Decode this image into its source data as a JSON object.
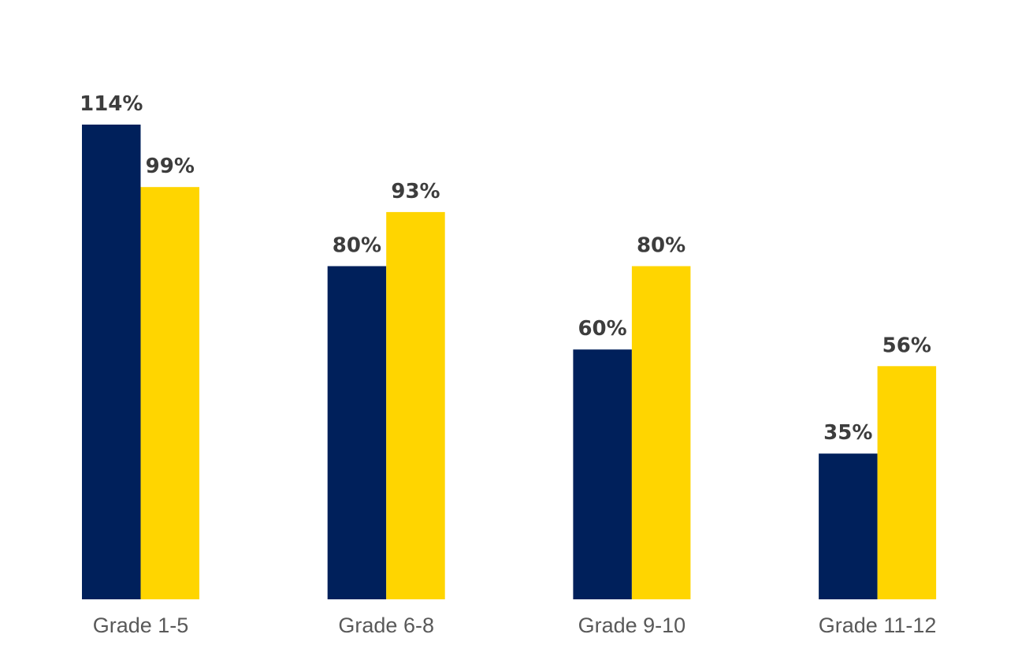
{
  "chart_data": {
    "type": "bar",
    "title": "",
    "xlabel": "",
    "ylabel": "",
    "categories": [
      "Grade 1-5",
      "Grade 6-8",
      "Grade 9-10",
      "Grade 11-12"
    ],
    "series": [
      {
        "color": "#00205B",
        "values": [
          114,
          80,
          60,
          35
        ],
        "labels": [
          "114%",
          "80%",
          "60%",
          "35%"
        ]
      },
      {
        "color": "#FFD500",
        "values": [
          99,
          93,
          80,
          56
        ],
        "labels": [
          "99%",
          "93%",
          "80%",
          "56%"
        ]
      }
    ],
    "ylim": [
      0,
      114
    ],
    "grid": false,
    "legend": "none"
  }
}
